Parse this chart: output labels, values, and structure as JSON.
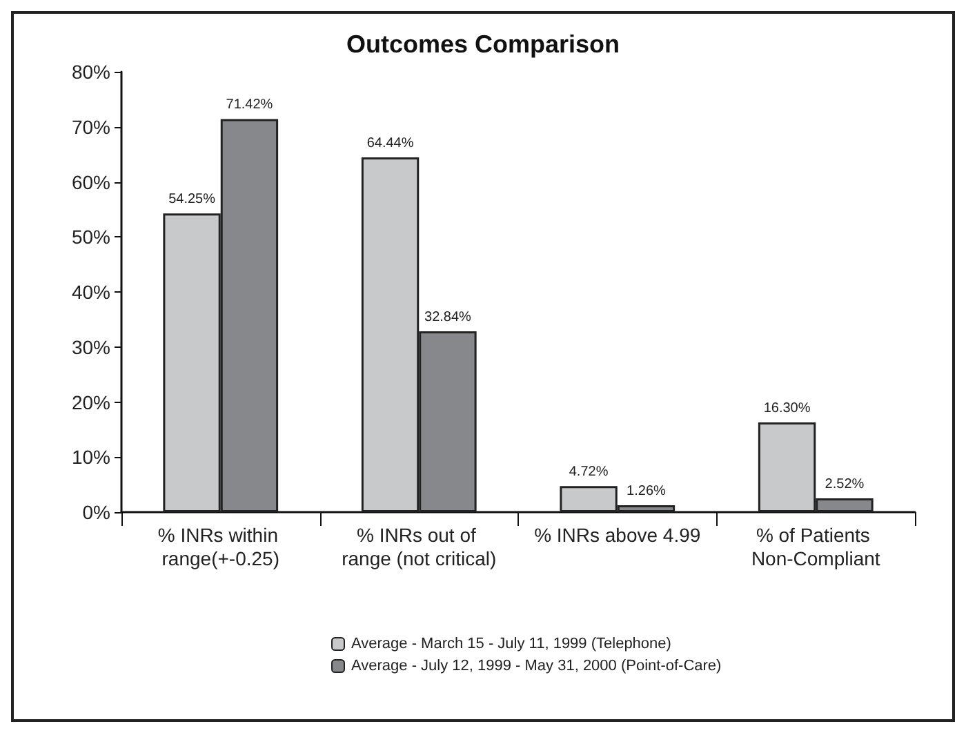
{
  "chart_data": {
    "type": "bar",
    "title": "Outcomes Comparison",
    "categories": [
      "% INRs within range(+-0.25)",
      "% INRs out of range (not critical)",
      "% INRs above 4.99",
      "% of Patients Non-Compliant"
    ],
    "series": [
      {
        "name": "Average - March 15 - July 11, 1999 (Telephone)",
        "color": "#c8c9cb",
        "values": [
          54.25,
          64.44,
          4.72,
          16.3
        ],
        "value_labels": [
          "54.25%",
          "64.44%",
          "4.72%",
          "16.30%"
        ]
      },
      {
        "name": "Average - July 12, 1999 - May 31, 2000 (Point-of-Care)",
        "color": "#87888c",
        "values": [
          71.42,
          32.84,
          1.26,
          2.52
        ],
        "value_labels": [
          "71.42%",
          "32.84%",
          "1.26%",
          "2.52%"
        ]
      }
    ],
    "ylim": [
      0,
      80
    ],
    "yticks": [
      {
        "value": 0,
        "label": "0%"
      },
      {
        "value": 10,
        "label": "10%"
      },
      {
        "value": 20,
        "label": "20%"
      },
      {
        "value": 30,
        "label": "30%"
      },
      {
        "value": 40,
        "label": "40%"
      },
      {
        "value": 50,
        "label": "50%"
      },
      {
        "value": 60,
        "label": "60%"
      },
      {
        "value": 70,
        "label": "70%"
      },
      {
        "value": 80,
        "label": "80%"
      }
    ],
    "grid": false,
    "legend": "bottom"
  }
}
